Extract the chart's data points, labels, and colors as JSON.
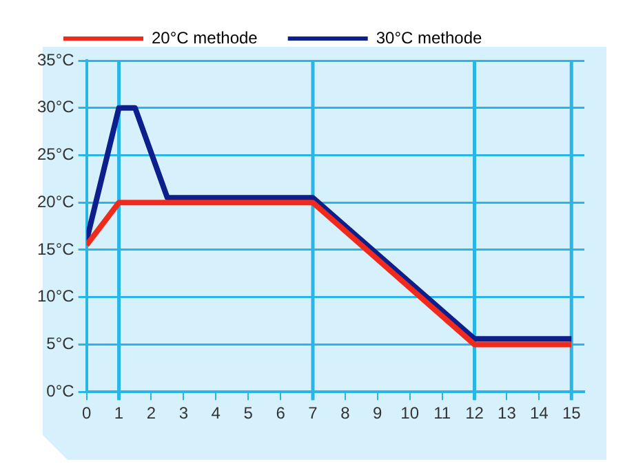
{
  "chart_data": {
    "type": "line",
    "xlim": [
      0,
      15.4
    ],
    "xticks": [
      0,
      1,
      2,
      3,
      4,
      5,
      6,
      7,
      8,
      9,
      10,
      11,
      12,
      13,
      14,
      15
    ],
    "ylim": [
      0,
      35
    ],
    "yticks": [
      {
        "value": 0,
        "label": "0°C"
      },
      {
        "value": 5,
        "label": "5°C"
      },
      {
        "value": 10,
        "label": "10°C"
      },
      {
        "value": 15,
        "label": "15°C"
      },
      {
        "value": 20,
        "label": "20°C"
      },
      {
        "value": 25,
        "label": "25°C"
      },
      {
        "value": 30,
        "label": "30°C"
      },
      {
        "value": 35,
        "label": "35°C"
      }
    ],
    "grid": "y",
    "legend": "top left",
    "line_style": "solid",
    "marker": "none",
    "ref_lines": [
      {
        "axis": "x",
        "value": 1,
        "color": "#29b6e6"
      },
      {
        "axis": "x",
        "value": 7,
        "color": "#29b6e6"
      },
      {
        "axis": "x",
        "value": 12,
        "color": "#29b6e6"
      },
      {
        "axis": "x",
        "value": 15,
        "color": "#29b6e6"
      }
    ],
    "series": [
      {
        "name": "20°C methode",
        "color": "#f02a1c",
        "x": [
          0,
          1,
          7,
          12,
          15
        ],
        "values": [
          15.5,
          20,
          20,
          5,
          5
        ]
      },
      {
        "name": "30°C methode",
        "color": "#0d1f8c",
        "x": [
          0,
          1,
          1.5,
          2.5,
          7,
          12,
          15
        ],
        "values": [
          16,
          30,
          30,
          20.5,
          20.5,
          5.6,
          5.6
        ]
      }
    ]
  }
}
